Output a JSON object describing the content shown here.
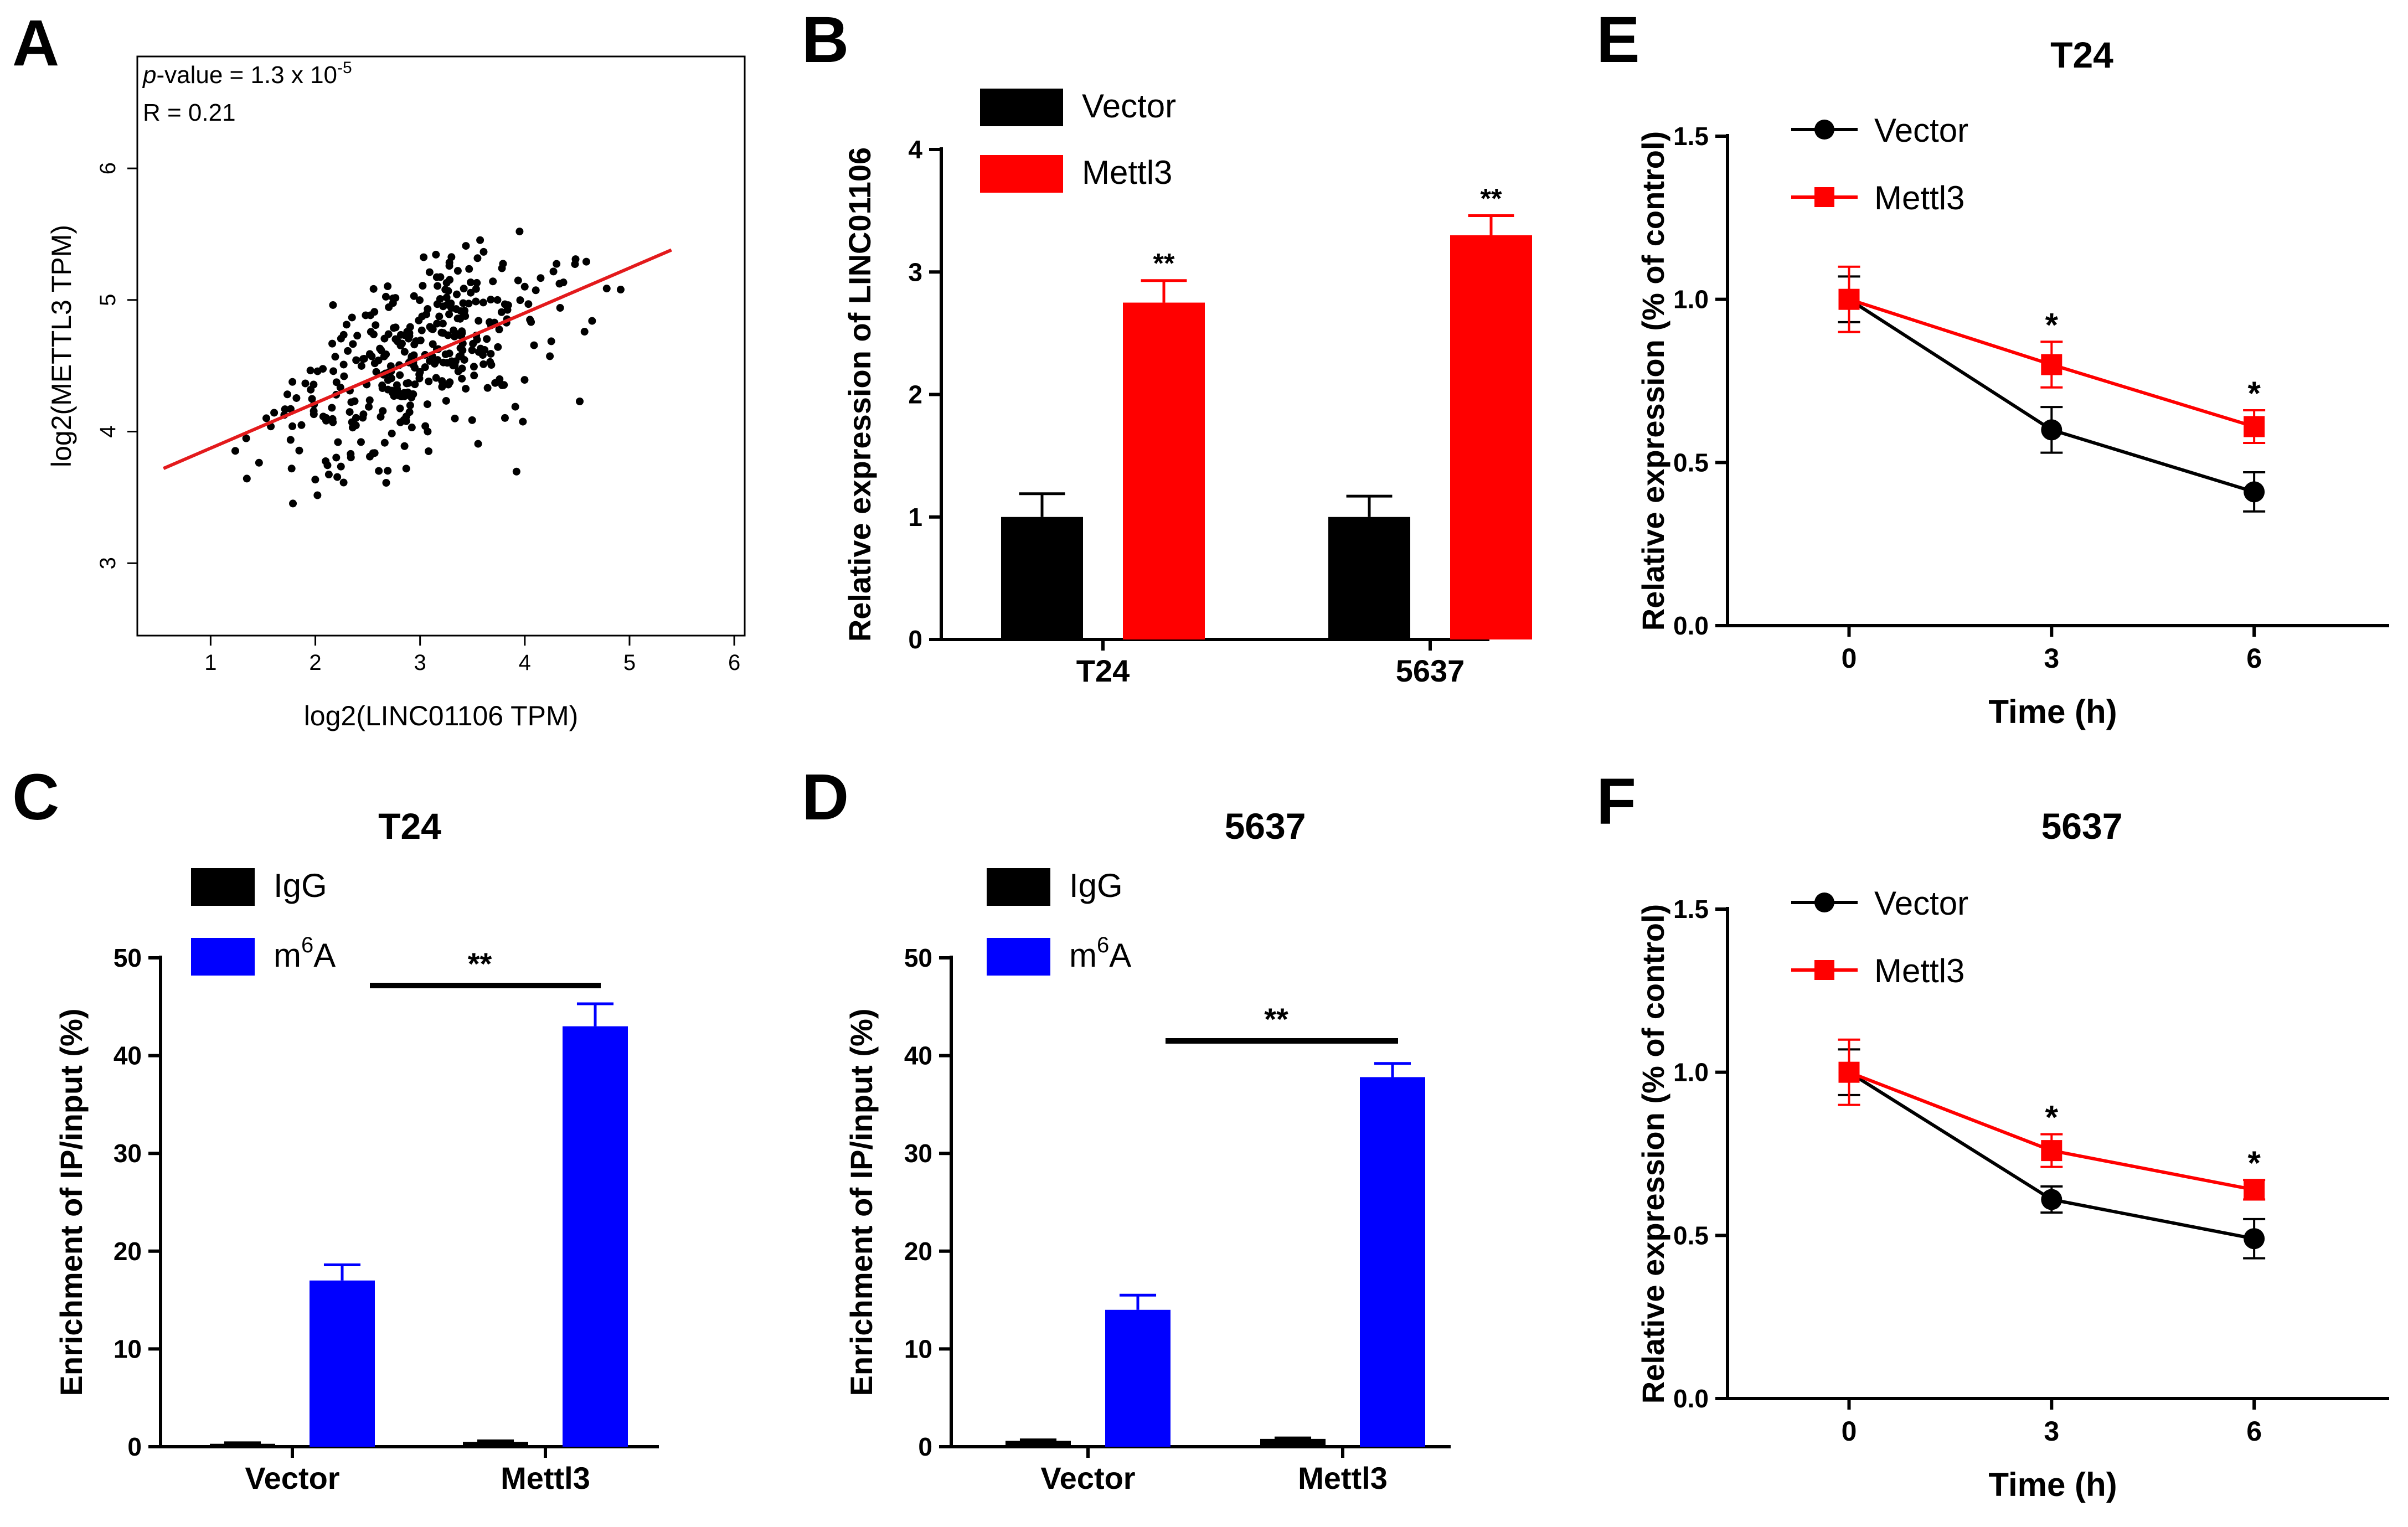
{
  "colors": {
    "black": "#000000",
    "red": "#ff0000",
    "blue": "#0000ff",
    "regression": "#e31a1c"
  },
  "chart_data": [
    {
      "panel": "A",
      "type": "scatter",
      "xlabel": "log2(LINC01106 TPM)",
      "ylabel": "log2(METTL3 TPM)",
      "xlim": [
        0.3,
        6.1
      ],
      "ylim": [
        2.45,
        6.85
      ],
      "xticks": [
        "1",
        "2",
        "3",
        "4",
        "5",
        "6"
      ],
      "yticks": [
        "3",
        "4",
        "5",
        "6"
      ],
      "annotation_p_prefix": "p",
      "annotation_p_value": "-value = 1.3 x 10",
      "annotation_p_exp": "-5",
      "annotation_r": "R = 0.21",
      "regression": {
        "x": [
          0.55,
          5.4
        ],
        "y": [
          3.72,
          5.38
        ]
      },
      "seed": 7,
      "n_points": 360
    },
    {
      "panel": "B",
      "type": "bar",
      "categories": [
        "T24",
        "5637"
      ],
      "series": [
        {
          "name": "Vector",
          "values": [
            1.0,
            1.0
          ],
          "errors": [
            0.19,
            0.17
          ],
          "color": "#000000"
        },
        {
          "name": "Mettl3",
          "values": [
            2.75,
            3.3
          ],
          "errors": [
            0.18,
            0.16
          ],
          "color": "#ff0000"
        }
      ],
      "significance": [
        "**",
        "**"
      ],
      "xlabel": "",
      "ylabel": "Relative expression of LINC01106",
      "ylim": [
        0,
        4
      ],
      "yticks": [
        "0",
        "1",
        "2",
        "3",
        "4"
      ]
    },
    {
      "panel": "C",
      "type": "bar",
      "title": "T24",
      "categories": [
        "Vector",
        "Mettl3"
      ],
      "series": [
        {
          "name": "IgG",
          "values": [
            0.3,
            0.5
          ],
          "errors": [
            0.1,
            0.1
          ],
          "color": "#000000"
        },
        {
          "name": "m6A",
          "name_base": "m",
          "name_sup": "6",
          "name_tail": "A",
          "values": [
            17.0,
            43.0
          ],
          "errors": [
            1.6,
            2.3
          ],
          "color": "#0000ff"
        }
      ],
      "bracket_label": "**",
      "ylabel": "Enrichment of IP/input (%)",
      "ylim": [
        0,
        50
      ],
      "yticks": [
        "0",
        "10",
        "20",
        "30",
        "40",
        "50"
      ]
    },
    {
      "panel": "D",
      "type": "bar",
      "title": "5637",
      "categories": [
        "Vector",
        "Mettl3"
      ],
      "series": [
        {
          "name": "IgG",
          "values": [
            0.6,
            0.8
          ],
          "errors": [
            0.1,
            0.1
          ],
          "color": "#000000"
        },
        {
          "name": "m6A",
          "name_base": "m",
          "name_sup": "6",
          "name_tail": "A",
          "values": [
            14.0,
            37.8
          ],
          "errors": [
            1.5,
            1.4
          ],
          "color": "#0000ff"
        }
      ],
      "bracket_label": "**",
      "ylabel": "Enrichment of IP/input (%)",
      "ylim": [
        0,
        50
      ],
      "yticks": [
        "0",
        "10",
        "20",
        "30",
        "40",
        "50"
      ]
    },
    {
      "panel": "E",
      "type": "line",
      "title": "T24",
      "x": [
        0,
        3,
        6
      ],
      "series": [
        {
          "name": "Vector",
          "values": [
            1.0,
            0.6,
            0.41
          ],
          "errors": [
            0.07,
            0.07,
            0.06
          ],
          "color": "#000000",
          "marker": "circle"
        },
        {
          "name": "Mettl3",
          "values": [
            1.0,
            0.8,
            0.61
          ],
          "errors": [
            0.1,
            0.07,
            0.05
          ],
          "color": "#ff0000",
          "marker": "square"
        }
      ],
      "significance": [
        "",
        "*",
        "*"
      ],
      "xlabel": "Time (h)",
      "ylabel": "Relative expression (% of control)",
      "xlim": [
        -1.8,
        8
      ],
      "ylim": [
        0,
        1.5
      ],
      "xticks": [
        "0",
        "3",
        "6"
      ],
      "yticks": [
        "0.0",
        "0.5",
        "1.0",
        "1.5"
      ]
    },
    {
      "panel": "F",
      "type": "line",
      "title": "5637",
      "x": [
        0,
        3,
        6
      ],
      "series": [
        {
          "name": "Vector",
          "values": [
            1.0,
            0.61,
            0.49
          ],
          "errors": [
            0.07,
            0.04,
            0.06
          ],
          "color": "#000000",
          "marker": "circle"
        },
        {
          "name": "Mettl3",
          "values": [
            1.0,
            0.76,
            0.64
          ],
          "errors": [
            0.1,
            0.05,
            0.03
          ],
          "color": "#ff0000",
          "marker": "square"
        }
      ],
      "significance": [
        "",
        "*",
        "*"
      ],
      "xlabel": "Time (h)",
      "ylabel": "Relative expression (% of control)",
      "xlim": [
        -1.8,
        8
      ],
      "ylim": [
        0,
        1.5
      ],
      "xticks": [
        "0",
        "3",
        "6"
      ],
      "yticks": [
        "0.0",
        "0.5",
        "1.0",
        "1.5"
      ]
    }
  ]
}
